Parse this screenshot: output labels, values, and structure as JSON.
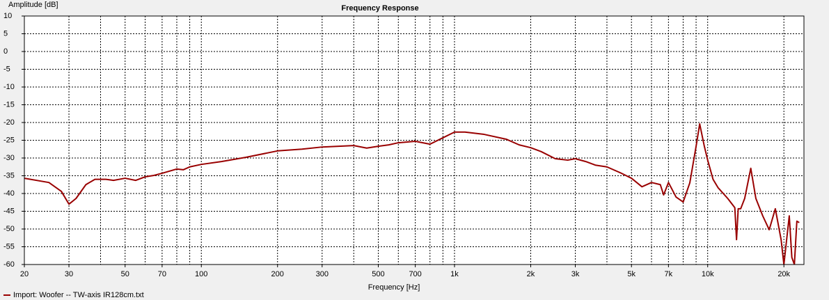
{
  "chart_data": {
    "type": "line",
    "title": "Frequency Response",
    "y_label": "Amplitude [dB]",
    "x_label": "Frequency [Hz]",
    "log_x": true,
    "grid": true,
    "legend_position": "bottom-left",
    "xlim": [
      20,
      24000
    ],
    "ylim": [
      -60,
      10
    ],
    "xticks": [
      20,
      30,
      50,
      70,
      100,
      200,
      300,
      500,
      700,
      {
        "value": 1000,
        "label": "1k"
      },
      {
        "value": 2000,
        "label": "2k"
      },
      {
        "value": 3000,
        "label": "3k"
      },
      {
        "value": 5000,
        "label": "5k"
      },
      {
        "value": 7000,
        "label": "7k"
      },
      {
        "value": 10000,
        "label": "10k"
      },
      {
        "value": 20000,
        "label": "20k"
      }
    ],
    "xminor_ticks": [
      40,
      60,
      80,
      90,
      400,
      600,
      800,
      900,
      4000,
      6000,
      8000,
      9000
    ],
    "yticks": [
      10,
      5,
      0,
      -5,
      -10,
      -15,
      -20,
      -25,
      -30,
      -35,
      -40,
      -45,
      -50,
      -55,
      -60
    ],
    "x": [
      20,
      25,
      28,
      30,
      32,
      35,
      38,
      42,
      45,
      50,
      55,
      60,
      65,
      70,
      80,
      85,
      90,
      100,
      120,
      150,
      200,
      250,
      300,
      400,
      450,
      500,
      550,
      600,
      700,
      800,
      900,
      1000,
      1100,
      1300,
      1600,
      1800,
      2000,
      2200,
      2500,
      2800,
      3000,
      3300,
      3600,
      4000,
      4500,
      5000,
      5500,
      6000,
      6500,
      6700,
      7000,
      7500,
      8000,
      8500,
      9000,
      9300,
      9700,
      10000,
      10500,
      11000,
      12000,
      12800,
      13000,
      13200,
      13500,
      14000,
      14800,
      15500,
      16500,
      17500,
      18500,
      19500,
      20000,
      21000,
      21500,
      22000,
      22500,
      23000
    ],
    "series": [
      {
        "name": "Import: Woofer -- TW-axis IR128cm.txt",
        "color": "#990000",
        "values": [
          -35.7,
          -36.9,
          -39.4,
          -43,
          -41.4,
          -37.5,
          -36,
          -36,
          -36.3,
          -35.7,
          -36.3,
          -35.3,
          -34.9,
          -34.3,
          -33.1,
          -33.3,
          -32.5,
          -31.8,
          -31,
          -29.8,
          -28,
          -27.5,
          -26.9,
          -26.5,
          -27.2,
          -26.7,
          -26.3,
          -25.7,
          -25.3,
          -26.1,
          -24.3,
          -22.7,
          -22.7,
          -23.3,
          -24.7,
          -26.3,
          -27.1,
          -28.2,
          -30.2,
          -30.6,
          -30.2,
          -31,
          -32,
          -32.5,
          -34.1,
          -35.7,
          -38.1,
          -36.9,
          -37.5,
          -40.4,
          -36.9,
          -41,
          -42.4,
          -37,
          -26.7,
          -20.4,
          -26.7,
          -30.6,
          -36,
          -38.4,
          -41.4,
          -44,
          -53,
          -44.3,
          -44.3,
          -41.4,
          -32.9,
          -41.4,
          -46.3,
          -50.2,
          -44.3,
          -53,
          -60,
          -46.3,
          -58,
          -60,
          -47.8,
          -48.2
        ]
      }
    ]
  }
}
